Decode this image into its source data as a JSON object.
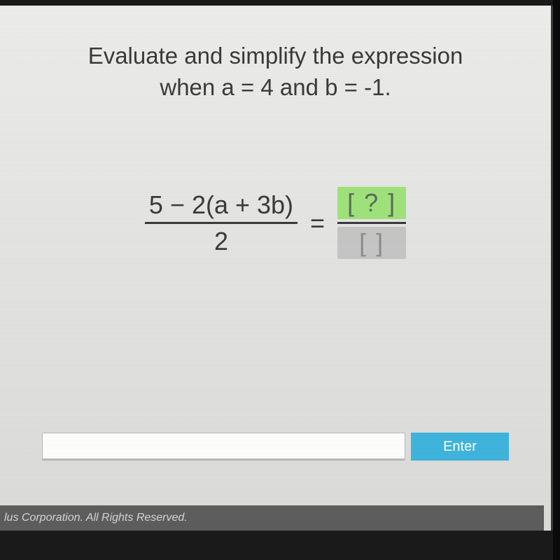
{
  "prompt": {
    "line1": "Evaluate and simplify the expression",
    "line2": "when a = 4 and b = -1."
  },
  "equation": {
    "numerator": "5 − 2(a + 3b)",
    "denominator": "2",
    "equals": "=",
    "answer_numerator": "[ ? ]",
    "answer_denominator": "[    ]"
  },
  "input": {
    "value": "",
    "placeholder": ""
  },
  "enter_label": "Enter",
  "footer_text": "lus Corporation.  All Rights Reserved.",
  "colors": {
    "active_box_bg": "#9fe27a",
    "inactive_box_bg": "#c5c5c5",
    "enter_bg": "#3fb4dc",
    "footer_bg": "#5d5d5d"
  }
}
